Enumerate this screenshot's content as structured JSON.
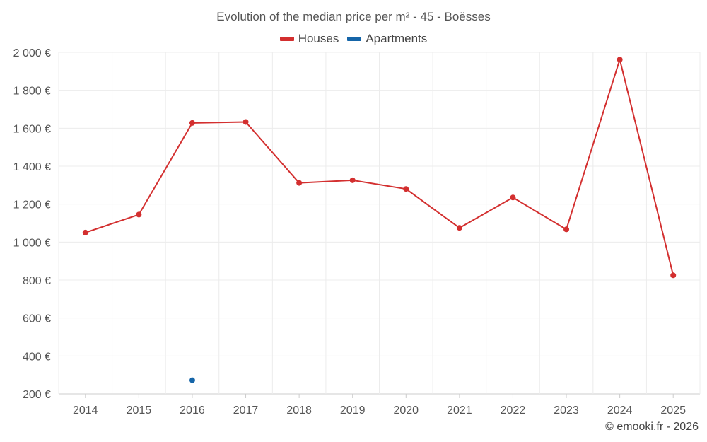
{
  "chart_data": {
    "type": "line",
    "title": "Evolution of the median price per m² - 45 - Boësses",
    "categories": [
      "2014",
      "2015",
      "2016",
      "2017",
      "2018",
      "2019",
      "2020",
      "2021",
      "2022",
      "2023",
      "2024",
      "2025"
    ],
    "series": [
      {
        "name": "Houses",
        "color": "#d32f2f",
        "values": [
          1050,
          1145,
          1628,
          1633,
          1312,
          1326,
          1280,
          1075,
          1235,
          1067,
          1962,
          825
        ]
      },
      {
        "name": "Apartments",
        "color": "#1565a8",
        "values": [
          null,
          null,
          272,
          null,
          null,
          null,
          null,
          null,
          null,
          null,
          null,
          null
        ]
      }
    ],
    "ylim": [
      200,
      2000
    ],
    "yticks": [
      200,
      400,
      600,
      800,
      1000,
      1200,
      1400,
      1600,
      1800,
      2000
    ],
    "ytick_labels": [
      "200 €",
      "400 €",
      "600 €",
      "800 €",
      "1 000 €",
      "1 200 €",
      "1 400 €",
      "1 600 €",
      "1 800 €",
      "2 000 €"
    ],
    "xlabel": "",
    "ylabel": "",
    "grid": true,
    "legend": "top-center"
  },
  "legend": {
    "houses_label": "Houses",
    "apartments_label": "Apartments"
  },
  "credit": "© emooki.fr - 2026"
}
